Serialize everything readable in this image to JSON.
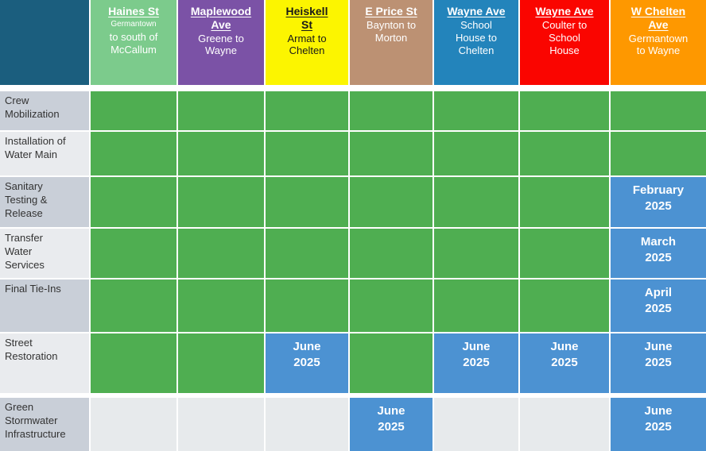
{
  "palette": {
    "corner_bg": "#1B5E7E",
    "active_green": "#4FAE51",
    "date_blue": "#4C92D2",
    "empty_gray": "#E7EAEC",
    "label_dark": "#C9CFD8",
    "label_light": "#E9EBEE",
    "label_text": "#333333"
  },
  "header": {
    "columns": [
      {
        "title": "Haines St",
        "subtitle_small": "Germantown",
        "subtitle": "to south of\nMcCallum",
        "bg": "#7CCB8C",
        "text_color": "#FFFFFF"
      },
      {
        "title": "Maplewood\nAve",
        "subtitle_small": "",
        "subtitle": "Greene to\nWayne",
        "bg": "#7B52A6",
        "text_color": "#FFFFFF"
      },
      {
        "title": "Heiskell\nSt",
        "subtitle_small": "",
        "subtitle": "Armat to\nChelten",
        "bg": "#FCF500",
        "text_color": "#1A1A1A"
      },
      {
        "title": "E Price St",
        "subtitle_small": "",
        "subtitle": "Baynton to\nMorton",
        "bg": "#BC9173",
        "text_color": "#FFFFFF"
      },
      {
        "title": "Wayne Ave",
        "subtitle_small": "",
        "subtitle": "School\nHouse to\nChelten",
        "bg": "#2384BB",
        "text_color": "#FFFFFF"
      },
      {
        "title": "Wayne Ave",
        "subtitle_small": "",
        "subtitle": "Coulter to\nSchool\nHouse",
        "bg": "#FA0500",
        "text_color": "#FFFFFF"
      },
      {
        "title": "W Chelten\nAve",
        "subtitle_small": "",
        "subtitle": "Germantown\nto Wayne",
        "bg": "#FE9800",
        "text_color": "#FFFFFF"
      }
    ]
  },
  "rows": [
    {
      "label": "Crew\nMobilization",
      "cells": [
        "active",
        "active",
        "active",
        "active",
        "active",
        "active",
        "active"
      ]
    },
    {
      "label": "Installation of\nWater Main",
      "cells": [
        "active",
        "active",
        "active",
        "active",
        "active",
        "active",
        "active"
      ]
    },
    {
      "label": "Sanitary\nTesting &\nRelease",
      "cells": [
        "active",
        "active",
        "active",
        "active",
        "active",
        "active",
        "February\n2025"
      ]
    },
    {
      "label": "Transfer\nWater\nServices",
      "cells": [
        "active",
        "active",
        "active",
        "active",
        "active",
        "active",
        "March\n2025"
      ]
    },
    {
      "label": "Final Tie-Ins",
      "cells": [
        "active",
        "active",
        "active",
        "active",
        "active",
        "active",
        "April\n2025"
      ]
    },
    {
      "label": "Street\nRestoration",
      "cells": [
        "active",
        "active",
        "June\n2025",
        "active",
        "June\n2025",
        "June\n2025",
        "June\n2025"
      ]
    },
    {
      "label": "Green\nStormwater\nInfrastructure",
      "cells": [
        "",
        "",
        "",
        "June\n2025",
        "",
        "",
        "June\n2025"
      ]
    }
  ],
  "chart_data": {
    "type": "table",
    "columns": [
      {
        "street": "Haines St",
        "segment": "Germantown to south of McCallum"
      },
      {
        "street": "Maplewood Ave",
        "segment": "Greene to Wayne"
      },
      {
        "street": "Heiskell St",
        "segment": "Armat to Chelten"
      },
      {
        "street": "E Price St",
        "segment": "Baynton to Morton"
      },
      {
        "street": "Wayne Ave",
        "segment": "School House to Chelten"
      },
      {
        "street": "Wayne Ave",
        "segment": "Coulter to School House"
      },
      {
        "street": "W Chelten Ave",
        "segment": "Germantown to Wayne"
      }
    ],
    "row_labels": [
      "Crew Mobilization",
      "Installation of Water Main",
      "Sanitary Testing & Release",
      "Transfer Water Services",
      "Final Tie-Ins",
      "Street Restoration",
      "Green Stormwater Infrastructure"
    ],
    "cells": [
      [
        "green",
        "green",
        "green",
        "green",
        "green",
        "green",
        "green"
      ],
      [
        "green",
        "green",
        "green",
        "green",
        "green",
        "green",
        "green"
      ],
      [
        "green",
        "green",
        "green",
        "green",
        "green",
        "green",
        "February 2025"
      ],
      [
        "green",
        "green",
        "green",
        "green",
        "green",
        "green",
        "March 2025"
      ],
      [
        "green",
        "green",
        "green",
        "green",
        "green",
        "green",
        "April 2025"
      ],
      [
        "green",
        "green",
        "June 2025",
        "green",
        "June 2025",
        "June 2025",
        "June 2025"
      ],
      [
        "",
        "",
        "",
        "June 2025",
        "",
        "",
        "June 2025"
      ]
    ],
    "cell_styles": {
      "green": "solid green cell (no text)",
      "date": "blue cell with month label",
      "blank": "light gray cell"
    }
  }
}
